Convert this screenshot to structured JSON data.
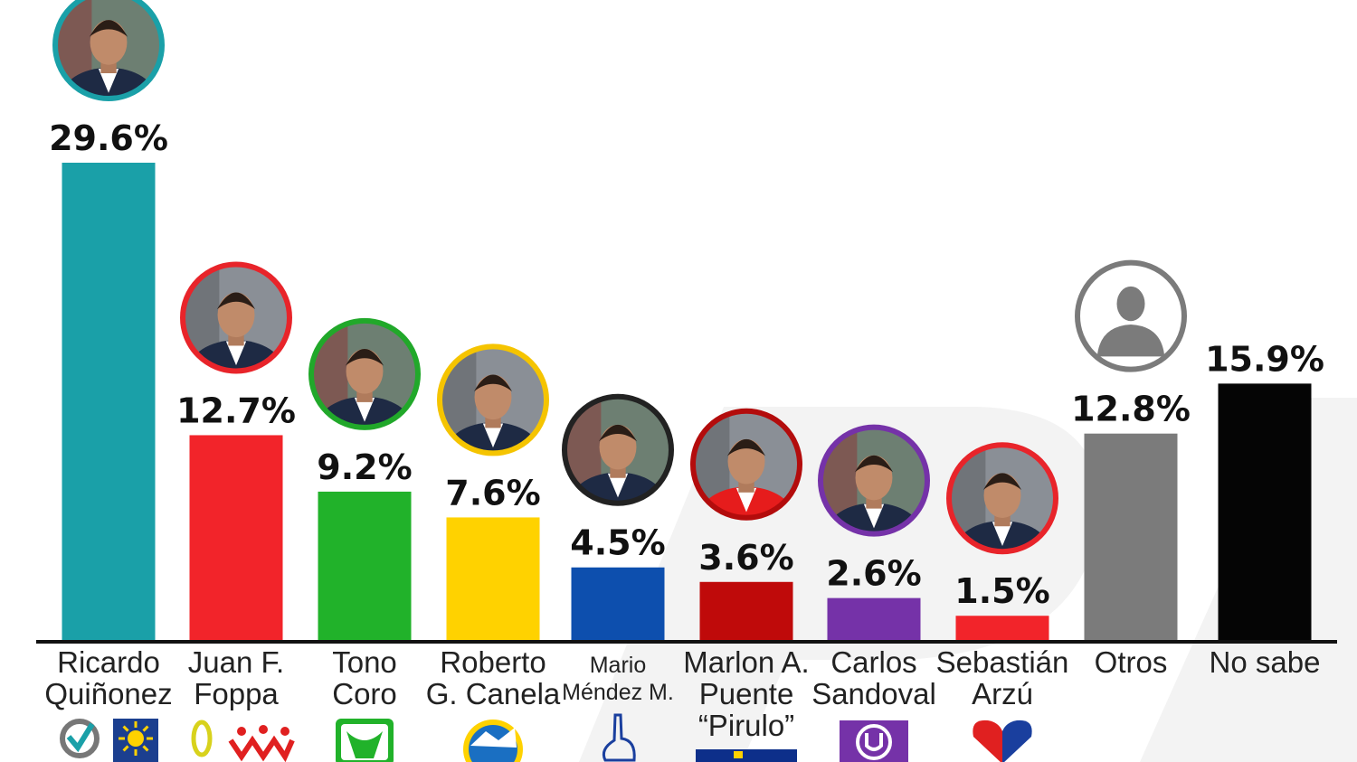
{
  "chart_data": {
    "type": "bar",
    "title": "",
    "xlabel": "",
    "ylabel": "",
    "ylim": [
      0,
      31
    ],
    "grid": false,
    "categories": [
      [
        "Ricardo",
        "Quiñonez"
      ],
      [
        "Juan F.",
        "Foppa"
      ],
      [
        "Tono",
        "Coro"
      ],
      [
        "Roberto",
        "G. Canela"
      ],
      [
        "Mario",
        "Méndez M."
      ],
      [
        "Marlon A.",
        "Puente",
        "“Pirulo”"
      ],
      [
        "Carlos",
        "Sandoval"
      ],
      [
        "Sebastián",
        "Arzú"
      ],
      [
        "Otros"
      ],
      [
        "No sabe"
      ]
    ],
    "values": [
      29.6,
      12.7,
      9.2,
      7.6,
      4.5,
      3.6,
      2.6,
      1.5,
      12.8,
      15.9
    ],
    "value_labels": [
      "29.6%",
      "12.7%",
      "9.2%",
      "7.6%",
      "4.5%",
      "3.6%",
      "2.6%",
      "1.5%",
      "12.8%",
      "15.9%"
    ],
    "colors": [
      "#1aa0a8",
      "#f2242a",
      "#21b22a",
      "#ffd200",
      "#0d4fae",
      "#bf0a0a",
      "#7532a8",
      "#f2242a",
      "#7b7b7b",
      "#050505"
    ],
    "ring_colors": [
      "#1aa0a8",
      "#e8242a",
      "#21a82a",
      "#f5c400",
      "#222222",
      "#b30c0c",
      "#7532a8",
      "#e8242a",
      "#7b7b7b",
      null
    ],
    "photo_icons": [
      "candidate-photo",
      "candidate-photo",
      "candidate-photo",
      "candidate-photo",
      "candidate-photo",
      "candidate-photo",
      "candidate-photo",
      "candidate-photo",
      "silhouette-icon",
      null
    ],
    "party_logo_icons": [
      "valor-unionista-logo",
      "winaq-logo",
      "prosperidad-logo",
      "creo-logo",
      "hand-logo",
      "cambio-logo",
      "purple-party-logo",
      "heart-hands-logo",
      null,
      null
    ]
  }
}
